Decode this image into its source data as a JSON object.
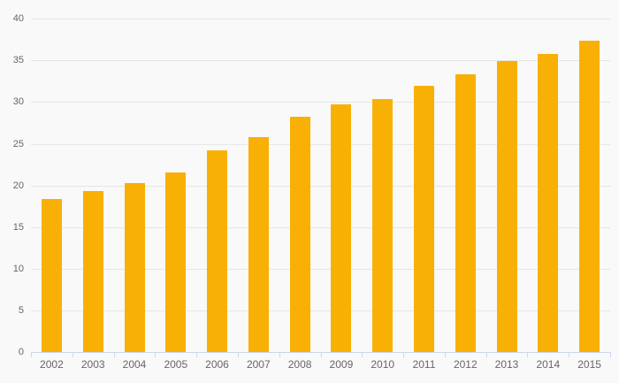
{
  "chart_data": {
    "type": "bar",
    "title": "",
    "xlabel": "",
    "ylabel": "",
    "categories": [
      "2002",
      "2003",
      "2004",
      "2005",
      "2006",
      "2007",
      "2008",
      "2009",
      "2010",
      "2011",
      "2012",
      "2013",
      "2014",
      "2015"
    ],
    "values": [
      18.4,
      19.3,
      20.3,
      21.6,
      24.2,
      25.8,
      28.2,
      29.7,
      30.4,
      31.9,
      33.3,
      34.9,
      35.8,
      37.4
    ],
    "ylim": [
      0,
      40
    ],
    "ytick_interval": 5,
    "ytick_labels": [
      "0",
      "5",
      "10",
      "15",
      "20",
      "25",
      "30",
      "35",
      "40"
    ],
    "grid": true,
    "legend": false,
    "colors": {
      "bar": "#f9b005",
      "background": "#f9f9f9",
      "gridline": "#e6e6e6",
      "axis_line": "#ccd6eb",
      "label": "#666666"
    }
  }
}
